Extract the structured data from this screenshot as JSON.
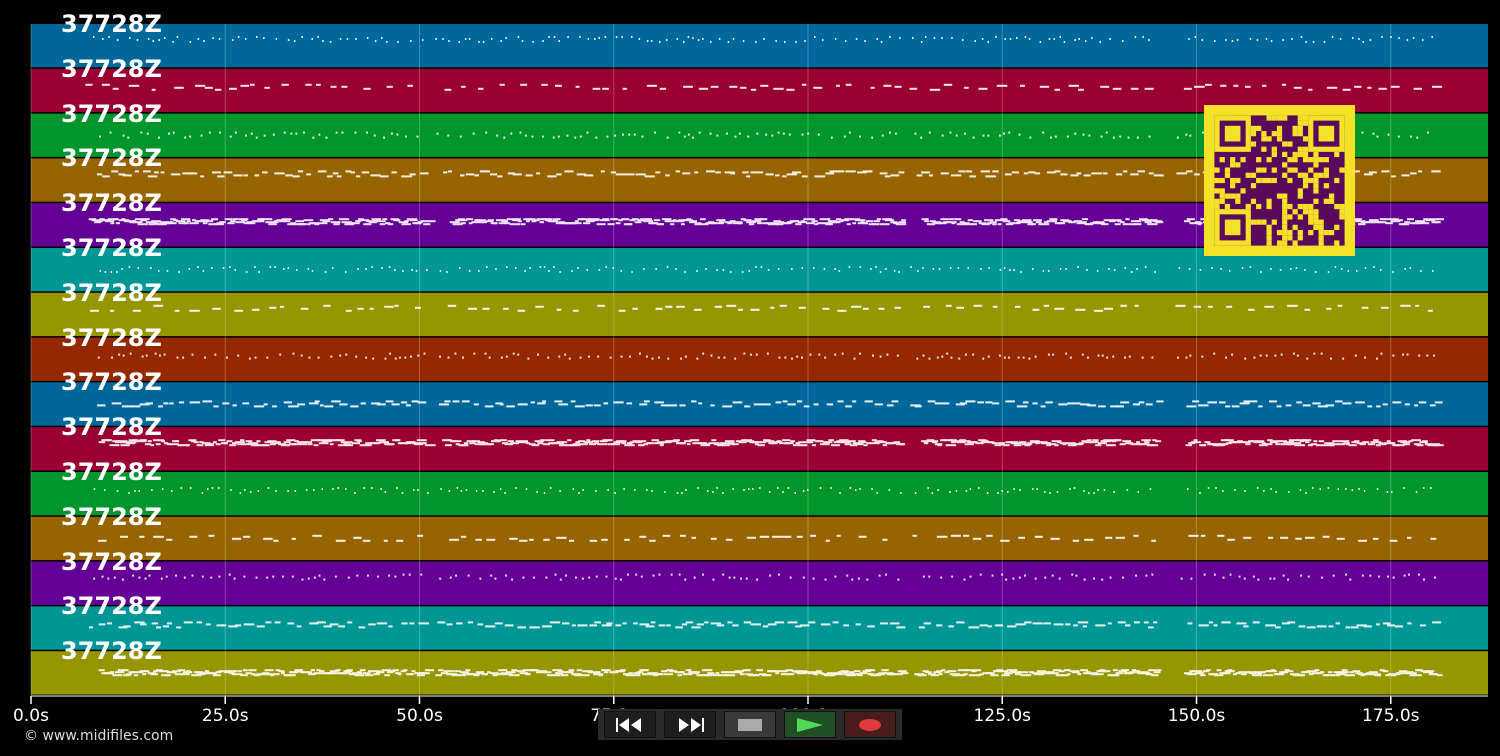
{
  "timeline": {
    "ticks": [
      "0.0s",
      "25.0s",
      "50.0s",
      "75.0s",
      "100.0s",
      "125.0s",
      "150.0s",
      "175.0s"
    ],
    "duration_s": 187
  },
  "tracks": [
    {
      "label": "37728Z",
      "color": "#00679a"
    },
    {
      "label": "37728Z",
      "color": "#9a0032"
    },
    {
      "label": "37728Z",
      "color": "#00962c"
    },
    {
      "label": "37728Z",
      "color": "#966400"
    },
    {
      "label": "37728Z",
      "color": "#640096"
    },
    {
      "label": "37728Z",
      "color": "#009696"
    },
    {
      "label": "37728Z",
      "color": "#969600"
    },
    {
      "label": "37728Z",
      "color": "#962800"
    },
    {
      "label": "37728Z",
      "color": "#00679a"
    },
    {
      "label": "37728Z",
      "color": "#9a0032"
    },
    {
      "label": "37728Z",
      "color": "#00962c"
    },
    {
      "label": "37728Z",
      "color": "#966400"
    },
    {
      "label": "37728Z",
      "color": "#640096"
    },
    {
      "label": "37728Z",
      "color": "#009696"
    },
    {
      "label": "37728Z",
      "color": "#969600"
    }
  ],
  "footer": {
    "copyright": "© www.midifiles.com"
  },
  "controls": {
    "rewind": "rewind-icon",
    "fast_forward": "fast-forward-icon",
    "stop": "stop-icon",
    "play": "play-icon",
    "record": "record-icon"
  },
  "qr": {
    "fg": "#f5e128",
    "bg": "#5a0a5a"
  }
}
